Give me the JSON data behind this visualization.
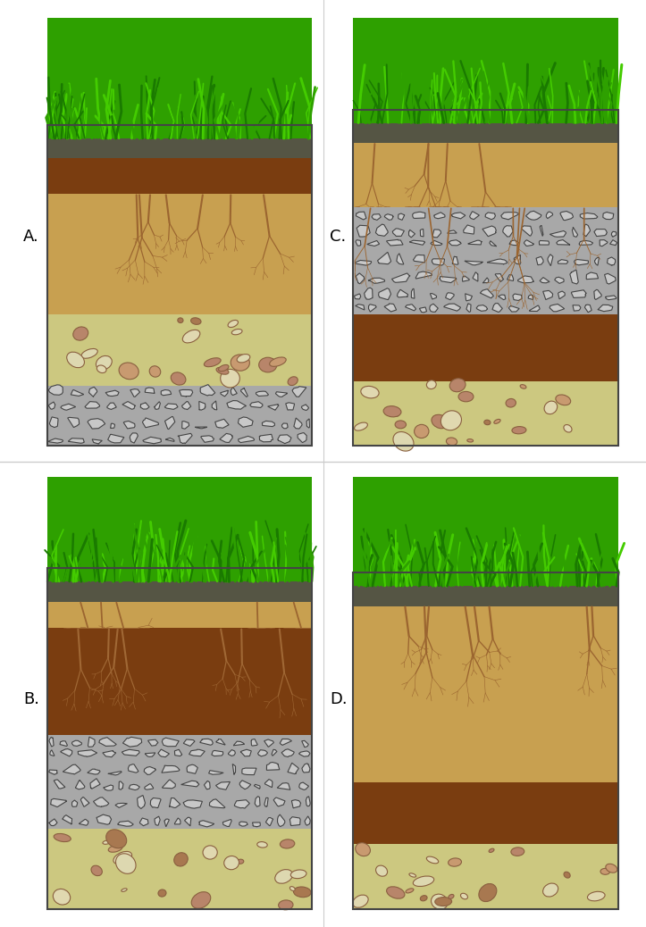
{
  "bg_color": "#ffffff",
  "label_A": "A.",
  "label_B": "B.",
  "label_C": "C.",
  "label_D": "D.",
  "label_fontsize": 13,
  "grass_dark": "#1a7a00",
  "grass_mid": "#2ea000",
  "grass_light": "#44cc00",
  "gray_layer": "#666655",
  "brown_dark": "#7a3d10",
  "brown_med": "#8b4513",
  "tan_brown": "#c8924a",
  "tan_light": "#c8aa6a",
  "tan_pale": "#ccc890",
  "stone_gray": "#b0b0b0",
  "stone_dark": "#888888",
  "stone_outline": "#444444",
  "root_color": "#9b6530",
  "pebble_brown": "#b8856a",
  "pebble_white": "#ddd8b0",
  "divider_color": "#cccccc"
}
